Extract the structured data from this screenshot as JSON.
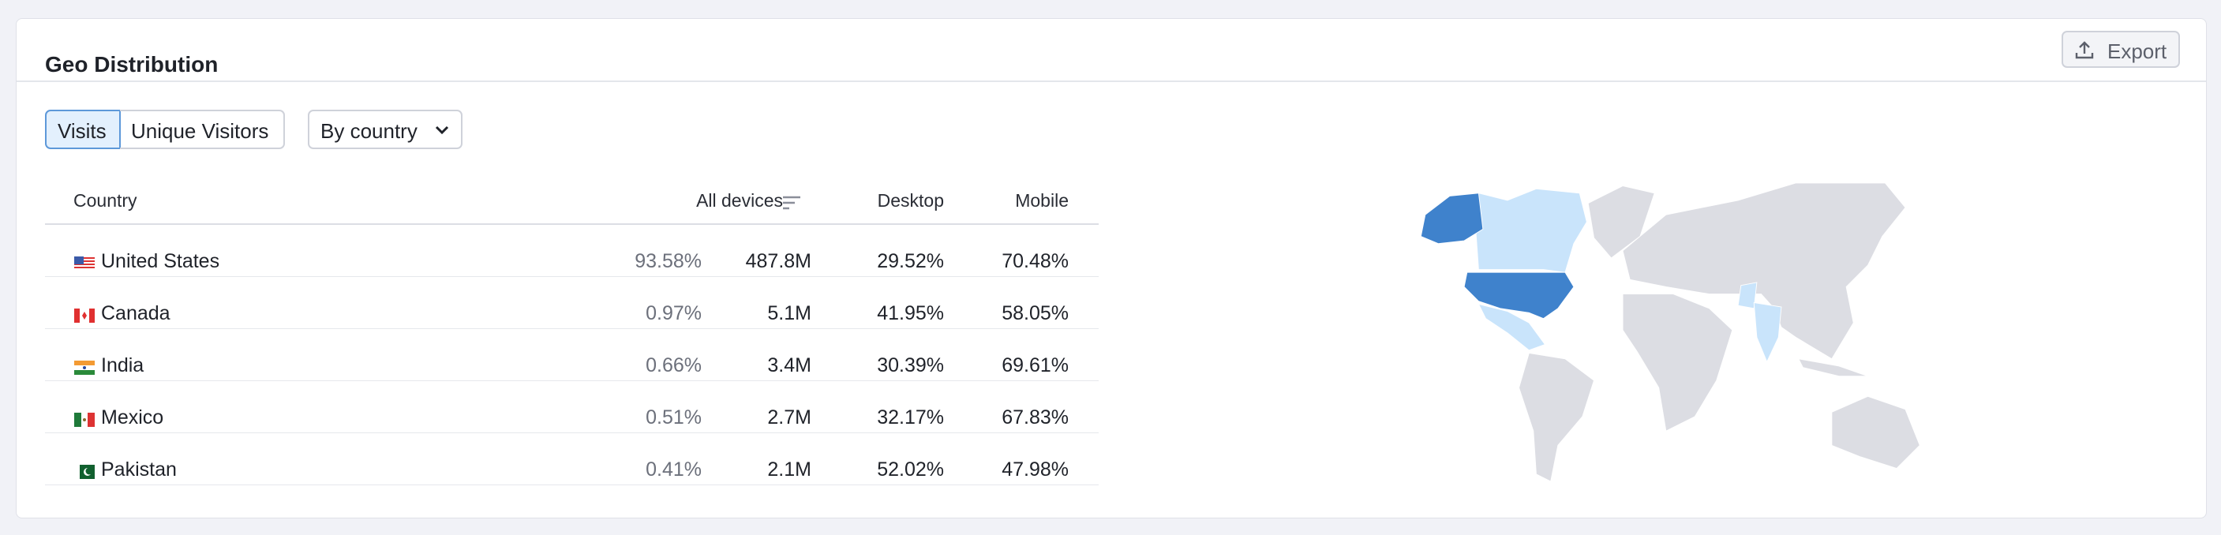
{
  "header": {
    "title": "Geo Distribution",
    "export": "Export"
  },
  "controls": {
    "tabs": [
      "Visits",
      "Unique Visitors"
    ],
    "dropdown": "By country"
  },
  "table": {
    "columns": [
      "Country",
      "All devices",
      "Desktop",
      "Mobile"
    ],
    "rows": [
      {
        "country": "United States",
        "share": "93.58%",
        "all_devices": "487.8M",
        "desktop": "29.52%",
        "mobile": "70.48%"
      },
      {
        "country": "Canada",
        "share": "0.97%",
        "all_devices": "5.1M",
        "desktop": "41.95%",
        "mobile": "58.05%"
      },
      {
        "country": "India",
        "share": "0.66%",
        "all_devices": "3.4M",
        "desktop": "30.39%",
        "mobile": "69.61%"
      },
      {
        "country": "Mexico",
        "share": "0.51%",
        "all_devices": "2.7M",
        "desktop": "32.17%",
        "mobile": "67.83%"
      },
      {
        "country": "Pakistan",
        "share": "0.41%",
        "all_devices": "2.1M",
        "desktop": "52.02%",
        "mobile": "47.98%"
      }
    ]
  }
}
